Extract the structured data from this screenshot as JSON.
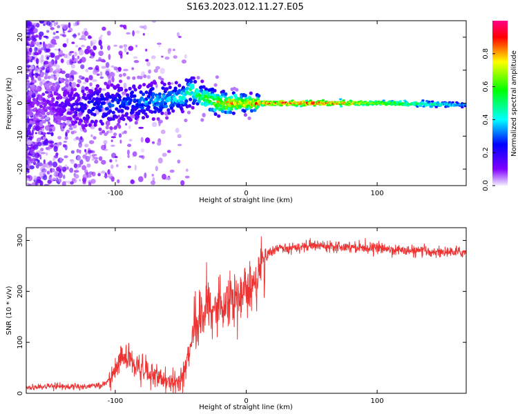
{
  "figure": {
    "title": "S163.2023.012.11.27.E05"
  },
  "chart_data": [
    {
      "type": "heatmap",
      "title": "S163.2023.012.11.27.E05",
      "xlabel": "Height of straight line (km)",
      "ylabel": "Frequency (Hz)",
      "xlim": [
        -168,
        168
      ],
      "ylim": [
        -25,
        25
      ],
      "x_ticks": [
        -100,
        0,
        100
      ],
      "x_tick_labels": [
        "-100",
        "0",
        "100"
      ],
      "y_ticks": [
        -20,
        -10,
        0,
        10,
        20
      ],
      "y_tick_labels": [
        "-20",
        "-10",
        "0",
        "10",
        "20"
      ],
      "colorbar": {
        "label": "Normalized spectral amplitude",
        "range": [
          0,
          1
        ],
        "ticks": [
          0.0,
          0.2,
          0.4,
          0.6,
          0.8
        ],
        "tick_labels": [
          "0.0",
          "0.2",
          "0.4",
          "0.6",
          "0.8"
        ],
        "colors": [
          "#f4f0ff",
          "#8000ff",
          "#0000ff",
          "#00ffff",
          "#00ff00",
          "#ffff00",
          "#ff0000",
          "#ff00aa"
        ]
      },
      "signal_profile": {
        "x": [
          -150,
          -130,
          -110,
          -95,
          -80,
          -65,
          -50,
          -42,
          -35,
          -28,
          -20,
          -10,
          0,
          10,
          30,
          60,
          100,
          130,
          160,
          168
        ],
        "center_freq": [
          0,
          -1,
          -1,
          0,
          0.5,
          1,
          1.5,
          4,
          2,
          1,
          0,
          0,
          0,
          0,
          0,
          0,
          0,
          -0.2,
          -0.5,
          -0.5
        ],
        "peak_amplitude": [
          0.1,
          0.2,
          0.3,
          0.3,
          0.35,
          0.4,
          0.45,
          0.55,
          0.6,
          0.65,
          0.8,
          0.85,
          0.85,
          0.88,
          0.9,
          0.9,
          0.7,
          0.55,
          0.4,
          0.35
        ]
      }
    },
    {
      "type": "line",
      "xlabel": "Height of straight line (km)",
      "ylabel": "SNR (10 * v/v)",
      "xlim": [
        -168,
        168
      ],
      "ylim": [
        0,
        325
      ],
      "x_ticks": [
        -100,
        0,
        100
      ],
      "x_tick_labels": [
        "-100",
        "0",
        "100"
      ],
      "y_ticks": [
        0,
        100,
        200,
        300
      ],
      "y_tick_labels": [
        "0",
        "100",
        "200",
        "300"
      ],
      "line_color": "#ee3333",
      "series": [
        {
          "x": [
            -168,
            -150,
            -130,
            -110,
            -105,
            -100,
            -95,
            -90,
            -85,
            -80,
            -75,
            -70,
            -65,
            -60,
            -55,
            -50,
            -45,
            -40,
            -35,
            -30,
            -25,
            -20,
            -15,
            -10,
            -5,
            0,
            5,
            10,
            15,
            20,
            25,
            30,
            40,
            50,
            60,
            80,
            100,
            120,
            140,
            150,
            168
          ],
          "values": [
            12,
            13,
            13,
            15,
            25,
            45,
            75,
            70,
            55,
            45,
            40,
            35,
            25,
            20,
            18,
            25,
            70,
            120,
            150,
            175,
            160,
            180,
            185,
            190,
            195,
            200,
            210,
            240,
            265,
            280,
            285,
            285,
            288,
            290,
            290,
            288,
            285,
            280,
            278,
            277,
            277
          ]
        }
      ]
    }
  ]
}
